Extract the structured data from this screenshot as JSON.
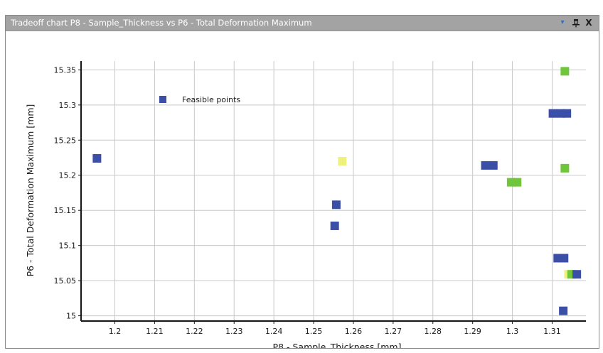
{
  "window": {
    "title": "Tradeoff chart P8 - Sample_Thickness vs P6 - Total Deformation Maximum",
    "menu_glyph": "▾",
    "pin_glyph": "ᵖ",
    "close_glyph": "X",
    "icons": [
      "dropdown-menu-icon",
      "pin-icon",
      "close-icon"
    ]
  },
  "chart_data": {
    "type": "scatter",
    "xlabel": "P8 - Sample_Thickness  [mm]",
    "ylabel": "P6 - Total Deformation Maximum  [mm]",
    "xlim": [
      1.1915,
      1.3185
    ],
    "ylim": [
      14.9925,
      15.3625
    ],
    "x_ticks": [
      1.2,
      1.21,
      1.22,
      1.23,
      1.24,
      1.25,
      1.26,
      1.27,
      1.28,
      1.29,
      1.3,
      1.31
    ],
    "x_tick_labels": [
      "1.2",
      "1.21",
      "1.22",
      "1.23",
      "1.24",
      "1.25",
      "1.26",
      "1.27",
      "1.28",
      "1.29",
      "1.3",
      "1.31"
    ],
    "y_ticks": [
      15,
      15.05,
      15.1,
      15.15,
      15.2,
      15.25,
      15.3,
      15.35
    ],
    "y_tick_labels": [
      "15",
      "15.05",
      "15.1",
      "15.15",
      "15.2",
      "15.25",
      "15.3",
      "15.35"
    ],
    "grid": true,
    "legend": {
      "label": "Feasible points",
      "color": "#3c4fa7",
      "placement": "top-left"
    },
    "colors": {
      "blue": "#3c4fa7",
      "green": "#6fc63a",
      "yellow": "#eef27a"
    },
    "points": [
      {
        "x": 1.1955,
        "y": 15.224,
        "color": "blue"
      },
      {
        "x": 1.2553,
        "y": 15.128,
        "color": "blue"
      },
      {
        "x": 1.2557,
        "y": 15.158,
        "color": "blue"
      },
      {
        "x": 1.2572,
        "y": 15.22,
        "color": "yellow"
      },
      {
        "x": 1.2932,
        "y": 15.214,
        "color": "blue"
      },
      {
        "x": 1.2952,
        "y": 15.214,
        "color": "blue"
      },
      {
        "x": 1.2997,
        "y": 15.19,
        "color": "green"
      },
      {
        "x": 1.3012,
        "y": 15.19,
        "color": "green"
      },
      {
        "x": 1.3102,
        "y": 15.288,
        "color": "blue"
      },
      {
        "x": 1.3122,
        "y": 15.288,
        "color": "blue"
      },
      {
        "x": 1.3137,
        "y": 15.288,
        "color": "blue"
      },
      {
        "x": 1.3114,
        "y": 15.082,
        "color": "blue"
      },
      {
        "x": 1.313,
        "y": 15.082,
        "color": "blue"
      },
      {
        "x": 1.3132,
        "y": 15.348,
        "color": "green"
      },
      {
        "x": 1.3132,
        "y": 15.21,
        "color": "green"
      },
      {
        "x": 1.3128,
        "y": 15.007,
        "color": "blue"
      },
      {
        "x": 1.3141,
        "y": 15.059,
        "color": "yellow"
      },
      {
        "x": 1.3149,
        "y": 15.059,
        "color": "green"
      },
      {
        "x": 1.3162,
        "y": 15.059,
        "color": "blue"
      }
    ]
  }
}
